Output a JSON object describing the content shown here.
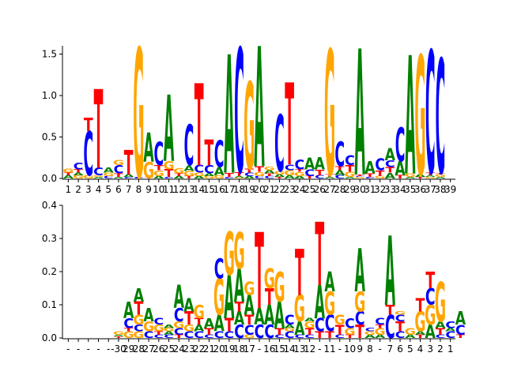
{
  "colors": {
    "A": "#008000",
    "C": "#0000ff",
    "G": "#ffa500",
    "T": "#ff0000"
  },
  "chart_data": [
    {
      "type": "sequence-logo",
      "title": "",
      "xlabel": "",
      "ylabel": "",
      "ylim": [
        0,
        1.6
      ],
      "yticks": [
        0.0,
        0.5,
        1.0,
        1.5
      ],
      "ytick_labels": [
        "0.0",
        "0.5",
        "1.0",
        "1.5"
      ],
      "categories": [
        "1",
        "2",
        "3",
        "4",
        "5",
        "6",
        "7",
        "8",
        "9",
        "10",
        "11",
        "12",
        "13",
        "14",
        "15",
        "16",
        "17",
        "18",
        "19",
        "20",
        "21",
        "22",
        "23",
        "24",
        "25",
        "26",
        "27",
        "28",
        "29",
        "30",
        "31",
        "32",
        "33",
        "34",
        "35",
        "36",
        "37",
        "38",
        "39"
      ],
      "stacks": [
        [
          [
            "A",
            0.04
          ],
          [
            "T",
            0.03
          ],
          [
            "G",
            0.05
          ]
        ],
        [
          [
            "G",
            0.04
          ],
          [
            "A",
            0.03
          ],
          [
            "T",
            0.04
          ],
          [
            "C",
            0.08
          ]
        ],
        [
          [
            "G",
            0.04
          ],
          [
            "C",
            0.53
          ],
          [
            "T",
            0.16
          ]
        ],
        [
          [
            "A",
            0.02
          ],
          [
            "G",
            0.02
          ],
          [
            "C",
            0.09
          ],
          [
            "T",
            0.95
          ]
        ],
        [
          [
            "C",
            0.03
          ],
          [
            "G",
            0.04
          ],
          [
            "A",
            0.06
          ]
        ],
        [
          [
            "A",
            0.02
          ],
          [
            "T",
            0.04
          ],
          [
            "C",
            0.1
          ],
          [
            "G",
            0.06
          ]
        ],
        [
          [
            "C",
            0.02
          ],
          [
            "A",
            0.03
          ],
          [
            "T",
            0.3
          ]
        ],
        [
          [
            "C",
            0.02
          ],
          [
            "G",
            1.56
          ]
        ],
        [
          [
            "T",
            0.01
          ],
          [
            "G",
            0.19
          ],
          [
            "A",
            0.35
          ]
        ],
        [
          [
            "A",
            0.03
          ],
          [
            "G",
            0.07
          ],
          [
            "T",
            0.06
          ],
          [
            "C",
            0.28
          ]
        ],
        [
          [
            "C",
            0.02
          ],
          [
            "T",
            0.09
          ],
          [
            "G",
            0.1
          ],
          [
            "A",
            0.8
          ]
        ],
        [
          [
            "A",
            0.03
          ],
          [
            "T",
            0.03
          ],
          [
            "G",
            0.06
          ]
        ],
        [
          [
            "T",
            0.03
          ],
          [
            "G",
            0.06
          ],
          [
            "A",
            0.07
          ],
          [
            "C",
            0.49
          ]
        ],
        [
          [
            "A",
            0.03
          ],
          [
            "G",
            0.04
          ],
          [
            "C",
            0.09
          ],
          [
            "T",
            0.99
          ]
        ],
        [
          [
            "G",
            0.03
          ],
          [
            "A",
            0.03
          ],
          [
            "C",
            0.1
          ],
          [
            "T",
            0.31
          ]
        ],
        [
          [
            "G",
            0.04
          ],
          [
            "A",
            0.1
          ],
          [
            "C",
            0.32
          ]
        ],
        [
          [
            "C",
            0.02
          ],
          [
            "T",
            0.05
          ],
          [
            "A",
            1.43
          ]
        ],
        [
          [
            "G",
            0.01
          ],
          [
            "A",
            0.02
          ],
          [
            "T",
            0.05
          ],
          [
            "C",
            1.5
          ]
        ],
        [
          [
            "A",
            0.03
          ],
          [
            "C",
            0.04
          ],
          [
            "T",
            0.05
          ],
          [
            "G",
            1.05
          ]
        ],
        [
          [
            "C",
            0.03
          ],
          [
            "G",
            0.05
          ],
          [
            "T",
            0.07
          ],
          [
            "A",
            1.45
          ]
        ],
        [
          [
            "C",
            0.03
          ],
          [
            "T",
            0.03
          ],
          [
            "A",
            0.04
          ],
          [
            "G",
            0.04
          ]
        ],
        [
          [
            "T",
            0.02
          ],
          [
            "A",
            0.03
          ],
          [
            "G",
            0.04
          ],
          [
            "C",
            0.68
          ]
        ],
        [
          [
            "A",
            0.04
          ],
          [
            "G",
            0.06
          ],
          [
            "C",
            0.07
          ],
          [
            "T",
            0.99
          ]
        ],
        [
          [
            "A",
            0.03
          ],
          [
            "G",
            0.05
          ],
          [
            "T",
            0.03
          ],
          [
            "C",
            0.12
          ]
        ],
        [
          [
            "T",
            0.03
          ],
          [
            "C",
            0.08
          ],
          [
            "A",
            0.14
          ]
        ],
        [
          [
            "C",
            0.04
          ],
          [
            "T",
            0.07
          ],
          [
            "A",
            0.15
          ]
        ],
        [
          [
            "A",
            0.02
          ],
          [
            "T",
            0.03
          ],
          [
            "G",
            1.51
          ]
        ],
        [
          [
            "C",
            0.04
          ],
          [
            "A",
            0.06
          ],
          [
            "T",
            0.05
          ],
          [
            "C",
            0.3
          ]
        ],
        [
          [
            "A",
            0.02
          ],
          [
            "G",
            0.06
          ],
          [
            "T",
            0.08
          ],
          [
            "C",
            0.12
          ]
        ],
        [
          [
            "G",
            0.02
          ],
          [
            "C",
            0.01
          ],
          [
            "T",
            0.02
          ],
          [
            "A",
            1.52
          ]
        ],
        [
          [
            "C",
            0.02
          ],
          [
            "T",
            0.04
          ],
          [
            "A",
            0.15
          ]
        ],
        [
          [
            "G",
            0.03
          ],
          [
            "T",
            0.07
          ],
          [
            "C",
            0.14
          ]
        ],
        [
          [
            "A",
            0.07
          ],
          [
            "T",
            0.07
          ],
          [
            "C",
            0.08
          ],
          [
            "A",
            0.15
          ]
        ],
        [
          [
            "T",
            0.04
          ],
          [
            "A",
            0.17
          ],
          [
            "C",
            0.41
          ]
        ],
        [
          [
            "A",
            0.02
          ],
          [
            "G",
            0.04
          ],
          [
            "A",
            1.43
          ]
        ],
        [
          [
            "T",
            0.02
          ],
          [
            "A",
            0.03
          ],
          [
            "G",
            1.44
          ]
        ],
        [
          [
            "G",
            0.02
          ],
          [
            "A",
            0.02
          ],
          [
            "T",
            0.03
          ],
          [
            "C",
            1.48
          ]
        ],
        [
          [
            "A",
            0.02
          ],
          [
            "G",
            0.03
          ],
          [
            "T",
            0.02
          ],
          [
            "C",
            1.38
          ]
        ]
      ]
    },
    {
      "type": "sequence-logo",
      "title": "",
      "xlabel": "",
      "ylabel": "",
      "ylim": [
        0,
        0.4
      ],
      "yticks": [
        0.0,
        0.1,
        0.2,
        0.3,
        0.4
      ],
      "ytick_labels": [
        "0.0",
        "0.1",
        "0.2",
        "0.3",
        "0.4"
      ],
      "categories": [
        "-",
        "-",
        "-",
        "-",
        "-",
        "-30",
        "29",
        "28",
        "27",
        "26",
        "25",
        "24",
        "23",
        "22",
        "21",
        "20",
        "19",
        "18",
        "17",
        "-",
        "16",
        "15",
        "14",
        "13",
        "12",
        "-",
        "11",
        "-",
        "10",
        "9",
        "8",
        "-",
        "7",
        "6",
        "5",
        "4",
        "3",
        "2",
        "1"
      ],
      "stacks": [
        [],
        [],
        [],
        [],
        [],
        [
          [
            "T",
            0.005
          ],
          [
            "A",
            0.005
          ],
          [
            "G",
            0.01
          ]
        ],
        [
          [
            "G",
            0.02
          ],
          [
            "T",
            0.01
          ],
          [
            "C",
            0.03
          ],
          [
            "A",
            0.05
          ]
        ],
        [
          [
            "G",
            0.02
          ],
          [
            "C",
            0.02
          ],
          [
            "G",
            0.03
          ],
          [
            "T",
            0.04
          ],
          [
            "A",
            0.04
          ]
        ],
        [
          [
            "C",
            0.02
          ],
          [
            "G",
            0.03
          ],
          [
            "A",
            0.04
          ]
        ],
        [
          [
            "C",
            0.01
          ],
          [
            "T",
            0.01
          ],
          [
            "G",
            0.02
          ],
          [
            "C",
            0.02
          ]
        ],
        [
          [
            "C",
            0.01
          ],
          [
            "A",
            0.01
          ],
          [
            "G",
            0.01
          ],
          [
            "A",
            0.01
          ]
        ],
        [
          [
            "T",
            0.01
          ],
          [
            "C",
            0.02
          ],
          [
            "G",
            0.02
          ],
          [
            "C",
            0.04
          ],
          [
            "A",
            0.07
          ]
        ],
        [
          [
            "C",
            0.02
          ],
          [
            "G",
            0.02
          ],
          [
            "T",
            0.04
          ],
          [
            "A",
            0.04
          ]
        ],
        [
          [
            "C",
            0.02
          ],
          [
            "A",
            0.02
          ],
          [
            "T",
            0.02
          ],
          [
            "G",
            0.04
          ]
        ],
        [
          [
            "C",
            0.01
          ],
          [
            "T",
            0.02
          ],
          [
            "A",
            0.03
          ]
        ],
        [
          [
            "C",
            0.02
          ],
          [
            "A",
            0.05
          ],
          [
            "G",
            0.11
          ],
          [
            "C",
            0.06
          ]
        ],
        [
          [
            "C",
            0.02
          ],
          [
            "T",
            0.04
          ],
          [
            "A",
            0.13
          ],
          [
            "G",
            0.13
          ]
        ],
        [
          [
            "C",
            0.04
          ],
          [
            "A",
            0.04
          ],
          [
            "T",
            0.03
          ],
          [
            "A",
            0.1
          ],
          [
            "G",
            0.11
          ]
        ],
        [
          [
            "G",
            0.01
          ],
          [
            "C",
            0.03
          ],
          [
            "T",
            0.03
          ],
          [
            "A",
            0.06
          ],
          [
            "G",
            0.04
          ]
        ],
        [
          [
            "C",
            0.04
          ],
          [
            "A",
            0.05
          ],
          [
            "T",
            0.23
          ]
        ],
        [
          [
            "C",
            0.04
          ],
          [
            "A",
            0.06
          ],
          [
            "T",
            0.05
          ],
          [
            "G",
            0.06
          ]
        ],
        [
          [
            "C",
            0.01
          ],
          [
            "T",
            0.02
          ],
          [
            "A",
            0.08
          ],
          [
            "G",
            0.09
          ]
        ],
        [
          [
            "C",
            0.02
          ],
          [
            "G",
            0.01
          ],
          [
            "A",
            0.01
          ],
          [
            "C",
            0.03
          ]
        ],
        [
          [
            "C",
            0.01
          ],
          [
            "A",
            0.04
          ],
          [
            "G",
            0.08
          ],
          [
            "T",
            0.14
          ]
        ],
        [
          [
            "C",
            0.01
          ],
          [
            "T",
            0.02
          ],
          [
            "G",
            0.02
          ],
          [
            "A",
            0.01
          ]
        ],
        [
          [
            "T",
            0.02
          ],
          [
            "C",
            0.04
          ],
          [
            "A",
            0.1
          ],
          [
            "T",
            0.19
          ]
        ],
        [
          [
            "T",
            0.02
          ],
          [
            "C",
            0.05
          ],
          [
            "G",
            0.07
          ],
          [
            "A",
            0.06
          ]
        ],
        [
          [
            "C",
            0.01
          ],
          [
            "T",
            0.03
          ],
          [
            "G",
            0.03
          ]
        ],
        [
          [
            "T",
            0.01
          ],
          [
            "G",
            0.02
          ],
          [
            "C",
            0.03
          ]
        ],
        [
          [
            "T",
            0.04
          ],
          [
            "C",
            0.04
          ],
          [
            "G",
            0.06
          ],
          [
            "A",
            0.13
          ]
        ],
        [
          [
            "A",
            0.01
          ],
          [
            "G",
            0.01
          ],
          [
            "C",
            0.01
          ]
        ],
        [
          [
            "A",
            0.01
          ],
          [
            "G",
            0.02
          ],
          [
            "T",
            0.01
          ],
          [
            "C",
            0.02
          ]
        ],
        [
          [
            "C",
            0.07
          ],
          [
            "T",
            0.03
          ],
          [
            "A",
            0.21
          ]
        ],
        [
          [
            "C",
            0.02
          ],
          [
            "T",
            0.03
          ],
          [
            "C",
            0.02
          ],
          [
            "G",
            0.01
          ]
        ],
        [
          [
            "A",
            0.01
          ],
          [
            "G",
            0.02
          ]
        ],
        [
          [
            "T",
            0.01
          ],
          [
            "A",
            0.01
          ],
          [
            "G",
            0.06
          ],
          [
            "T",
            0.04
          ]
        ],
        [
          [
            "A",
            0.04
          ],
          [
            "G",
            0.06
          ],
          [
            "C",
            0.05
          ],
          [
            "T",
            0.05
          ]
        ],
        [
          [
            "C",
            0.01
          ],
          [
            "T",
            0.02
          ],
          [
            "A",
            0.02
          ],
          [
            "G",
            0.12
          ]
        ],
        [
          [
            "C",
            0.02
          ],
          [
            "A",
            0.01
          ],
          [
            "C",
            0.02
          ]
        ],
        [
          [
            "T",
            0.01
          ],
          [
            "C",
            0.03
          ],
          [
            "A",
            0.04
          ]
        ]
      ]
    }
  ]
}
